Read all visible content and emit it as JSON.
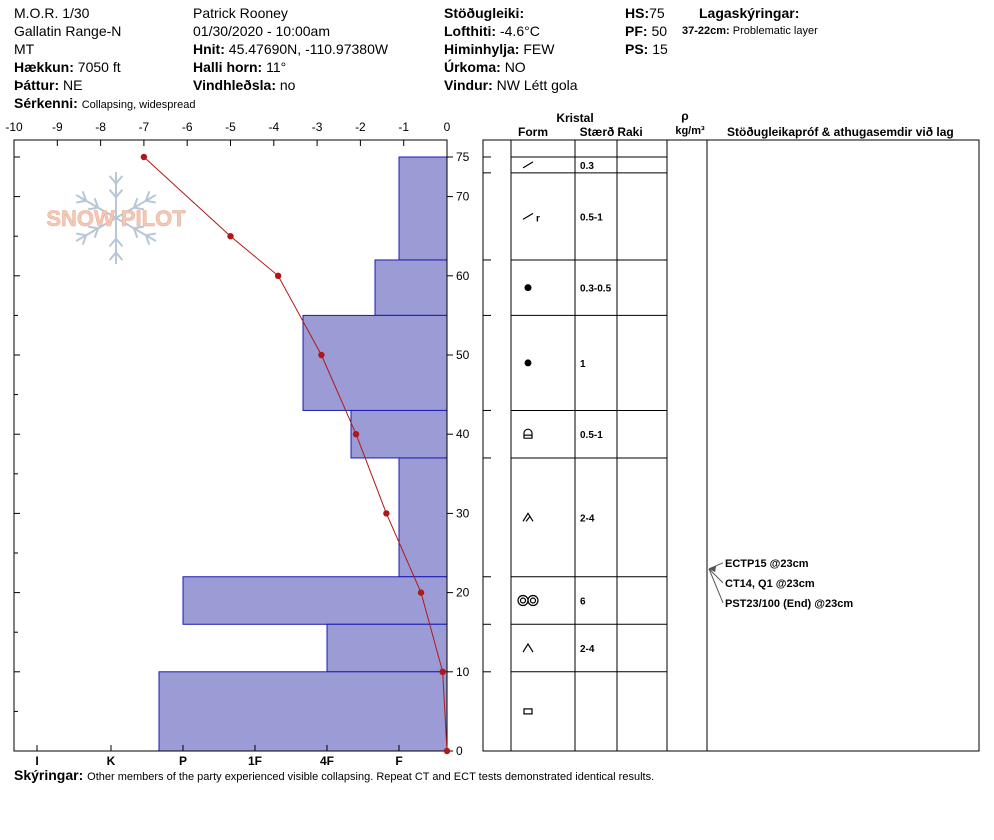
{
  "header": {
    "col1": {
      "site": "M.O.R. 1/30",
      "range": "Gallatin Range-N",
      "state": "MT",
      "elevation_label": "Hækkun:",
      "elevation_value": "7050 ft",
      "aspect_label": "Þáttur:",
      "aspect_value": "NE",
      "features_label": "Sérkenni:",
      "features_value": "Collapsing, widespread"
    },
    "col2": {
      "observer": "Patrick Rooney",
      "datetime": "01/30/2020 - 10:00am",
      "coords_label": "Hnit:",
      "coords_value": "45.47690N, -110.97380W",
      "slope_label": "Halli horn:",
      "slope_value": "11°",
      "wind_loading_label": "Vindhleðsla:",
      "wind_loading_value": "no"
    },
    "col3": {
      "stability_label": "Stöðugleiki:",
      "air_temp_label": "Lofthiti:",
      "air_temp_value": "-4.6°C",
      "sky_label": "Himinhylja:",
      "sky_value": "FEW",
      "precip_label": "Úrkoma:",
      "precip_value": "NO",
      "wind_label": "Vindur:",
      "wind_value": "NW Létt gola"
    },
    "col4": {
      "hs_label": "HS:",
      "hs_value": "75",
      "pf_label": "PF:",
      "pf_value": "50",
      "ps_label": "PS:",
      "ps_value": "15"
    },
    "col5": {
      "layer_notes_label": "Lagaskýringar:",
      "layer_range": "37-22cm:",
      "layer_desc": "Problematic layer"
    }
  },
  "logo": {
    "text": "SNOW PILOT",
    "color": "#f2c9b8",
    "flake_color": "#b7c7d6"
  },
  "notes": {
    "label": "Skýringar:",
    "text": "Other members of the party experienced visible collapsing. Repeat CT and ECT tests demonstrated identical results."
  },
  "colors": {
    "hardness_fill": "#9b9bd6",
    "hardness_stroke": "#1a1ab4",
    "temp_line": "#b01818"
  },
  "chart_data": {
    "type": "bar",
    "x_top_ticks": [
      -10,
      -9,
      -8,
      -7,
      -6,
      -5,
      -4,
      -3,
      -2,
      -1,
      0
    ],
    "xlim": [
      -10,
      0
    ],
    "x_bottom_ticks": [
      "I",
      "K",
      "P",
      "1F",
      "4F",
      "F"
    ],
    "y_ticks": [
      0,
      10,
      20,
      30,
      40,
      50,
      60,
      70,
      75
    ],
    "ylim": [
      0,
      77
    ],
    "hardness_layers": [
      {
        "top": 75,
        "bottom": 62,
        "hardness": "F"
      },
      {
        "top": 62,
        "bottom": 55,
        "hardness": "F+"
      },
      {
        "top": 55,
        "bottom": 43,
        "hardness": "4F+"
      },
      {
        "top": 43,
        "bottom": 37,
        "hardness": "4F-"
      },
      {
        "top": 37,
        "bottom": 22,
        "hardness": "F"
      },
      {
        "top": 22,
        "bottom": 16,
        "hardness": "P-"
      },
      {
        "top": 16,
        "bottom": 10,
        "hardness": "4F"
      },
      {
        "top": 10,
        "bottom": 0,
        "hardness": "P+"
      }
    ],
    "temperature_profile": [
      {
        "depth": 75,
        "temp": -7.0
      },
      {
        "depth": 65,
        "temp": -5.0
      },
      {
        "depth": 60,
        "temp": -3.9
      },
      {
        "depth": 50,
        "temp": -2.9
      },
      {
        "depth": 40,
        "temp": -2.1
      },
      {
        "depth": 30,
        "temp": -1.4
      },
      {
        "depth": 20,
        "temp": -0.6
      },
      {
        "depth": 10,
        "temp": -0.1
      },
      {
        "depth": 0,
        "temp": 0.0
      }
    ],
    "table_headers": {
      "crystal": "Kristal",
      "form": "Form",
      "size": "Stærð",
      "moisture": "Raki",
      "density_symbol": "ρ",
      "density_unit": "kg/m³",
      "comments": "Stöðugleikapróf & athugasemdir við lag"
    },
    "crystal_rows": [
      {
        "top": 75,
        "bottom": 73,
        "form": "precip-particles",
        "size": "0.3"
      },
      {
        "top": 73,
        "bottom": 62,
        "form": "decomposing-rimed",
        "size": "0.5-1"
      },
      {
        "top": 62,
        "bottom": 55,
        "form": "rounded",
        "size": "0.3-0.5"
      },
      {
        "top": 55,
        "bottom": 43,
        "form": "rounded",
        "size": "1"
      },
      {
        "top": 43,
        "bottom": 37,
        "form": "rounding-faceted",
        "size": "0.5-1"
      },
      {
        "top": 37,
        "bottom": 22,
        "form": "depth-hoar-faceting",
        "size": "2-4"
      },
      {
        "top": 22,
        "bottom": 16,
        "form": "melt-freeze",
        "size": "6"
      },
      {
        "top": 16,
        "bottom": 10,
        "form": "depth-hoar",
        "size": "2-4"
      },
      {
        "top": 10,
        "bottom": 0,
        "form": "faceted",
        "size": ""
      }
    ],
    "stability_tests": [
      {
        "depth": 23,
        "label": "ECTP15 @23cm"
      },
      {
        "depth": 23,
        "label": "CT14, Q1 @23cm"
      },
      {
        "depth": 23,
        "label": "PST23/100 (End) @23cm"
      }
    ]
  }
}
